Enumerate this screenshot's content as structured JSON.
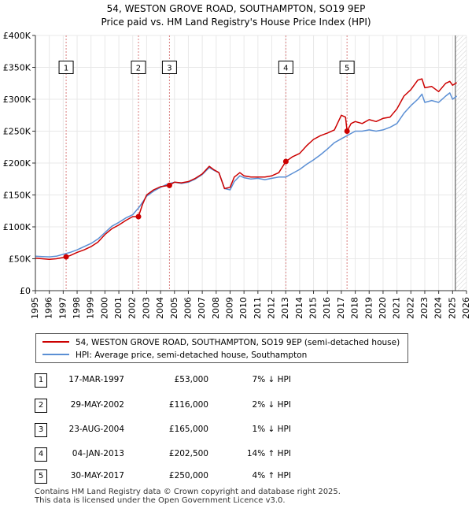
{
  "chart_data": {
    "type": "line",
    "title": "54, WESTON GROVE ROAD, SOUTHAMPTON, SO19 9EP",
    "subtitle": "Price paid vs. HM Land Registry's House Price Index (HPI)",
    "xlim": [
      1995,
      2026
    ],
    "ylim": [
      0,
      400000
    ],
    "x_ticks": [
      1995,
      1996,
      1997,
      1998,
      1999,
      2000,
      2001,
      2002,
      2003,
      2004,
      2005,
      2006,
      2007,
      2008,
      2009,
      2010,
      2011,
      2012,
      2013,
      2014,
      2015,
      2016,
      2017,
      2018,
      2019,
      2020,
      2021,
      2022,
      2023,
      2024,
      2025,
      2026
    ],
    "y_ticks": [
      0,
      50000,
      100000,
      150000,
      200000,
      250000,
      300000,
      350000,
      400000
    ],
    "y_tick_labels": [
      "£0",
      "£50K",
      "£100K",
      "£150K",
      "£200K",
      "£250K",
      "£300K",
      "£350K",
      "£400K"
    ],
    "future_from": 2025.2,
    "colors": {
      "property": "#cc0000",
      "hpi": "#5b8fd4",
      "grid": "#e8e8e8",
      "vline": "#d98080"
    },
    "series": [
      {
        "name": "54, WESTON GROVE ROAD, SOUTHAMPTON, SO19 9EP (semi-detached house)",
        "x": [
          1995.0,
          1995.5,
          1996.0,
          1996.5,
          1997.0,
          1997.21,
          1997.5,
          1998.0,
          1998.5,
          1999.0,
          1999.5,
          2000.0,
          2000.5,
          2001.0,
          2001.5,
          2002.0,
          2002.41,
          2002.7,
          2003.0,
          2003.5,
          2004.0,
          2004.64,
          2005.0,
          2005.5,
          2006.0,
          2006.5,
          2007.0,
          2007.5,
          2007.8,
          2008.2,
          2008.6,
          2009.0,
          2009.3,
          2009.7,
          2010.0,
          2010.5,
          2011.0,
          2011.5,
          2012.0,
          2012.5,
          2013.01,
          2013.5,
          2014.0,
          2014.5,
          2015.0,
          2015.5,
          2016.0,
          2016.5,
          2017.0,
          2017.3,
          2017.41,
          2017.7,
          2018.0,
          2018.5,
          2019.0,
          2019.5,
          2020.0,
          2020.5,
          2021.0,
          2021.5,
          2022.0,
          2022.5,
          2022.8,
          2023.0,
          2023.5,
          2024.0,
          2024.5,
          2024.8,
          2025.0,
          2025.3
        ],
        "values": [
          51000,
          50000,
          49000,
          50000,
          52000,
          53000,
          55000,
          60000,
          64000,
          69000,
          76000,
          88000,
          97000,
          103000,
          110000,
          116000,
          116000,
          135000,
          150000,
          158000,
          163000,
          165000,
          170000,
          169000,
          171000,
          176000,
          183000,
          195000,
          190000,
          185000,
          160000,
          162000,
          178000,
          185000,
          180000,
          178000,
          178000,
          178000,
          180000,
          185000,
          202500,
          210000,
          215000,
          227000,
          237000,
          243000,
          247000,
          252000,
          275000,
          272000,
          250000,
          262000,
          265000,
          262000,
          268000,
          265000,
          270000,
          272000,
          285000,
          305000,
          315000,
          330000,
          332000,
          318000,
          320000,
          312000,
          325000,
          328000,
          322000,
          326000
        ]
      },
      {
        "name": "HPI: Average price, semi-detached house, Southampton",
        "x": [
          1995.0,
          1995.5,
          1996.0,
          1996.5,
          1997.0,
          1997.5,
          1998.0,
          1998.5,
          1999.0,
          1999.5,
          2000.0,
          2000.5,
          2001.0,
          2001.5,
          2002.0,
          2002.5,
          2003.0,
          2003.5,
          2004.0,
          2004.5,
          2005.0,
          2005.5,
          2006.0,
          2006.5,
          2007.0,
          2007.5,
          2007.8,
          2008.2,
          2008.6,
          2009.0,
          2009.3,
          2009.7,
          2010.0,
          2010.5,
          2011.0,
          2011.5,
          2012.0,
          2012.5,
          2013.0,
          2013.5,
          2014.0,
          2014.5,
          2015.0,
          2015.5,
          2016.0,
          2016.5,
          2017.0,
          2017.5,
          2018.0,
          2018.5,
          2019.0,
          2019.5,
          2020.0,
          2020.5,
          2021.0,
          2021.5,
          2022.0,
          2022.5,
          2022.8,
          2023.0,
          2023.5,
          2024.0,
          2024.5,
          2024.8,
          2025.0,
          2025.3
        ],
        "values": [
          54000,
          53500,
          53000,
          54000,
          57000,
          60000,
          64000,
          69000,
          74000,
          81000,
          91000,
          101000,
          107000,
          114000,
          119000,
          132000,
          148000,
          156000,
          162000,
          167000,
          170000,
          168000,
          170000,
          175000,
          182000,
          193000,
          189000,
          185000,
          160000,
          158000,
          171000,
          180000,
          177000,
          175000,
          176000,
          174000,
          176000,
          178000,
          178000,
          184000,
          190000,
          198000,
          205000,
          213000,
          222000,
          232000,
          238000,
          244000,
          250000,
          250000,
          252000,
          250000,
          252000,
          256000,
          262000,
          278000,
          290000,
          300000,
          308000,
          295000,
          298000,
          295000,
          305000,
          310000,
          300000,
          305000
        ]
      }
    ],
    "transactions": [
      {
        "id": "1",
        "x": 1997.21,
        "value": 53000,
        "date": "17-MAR-1997",
        "price": "£53,000",
        "hpi": "7% ↓ HPI"
      },
      {
        "id": "2",
        "x": 2002.41,
        "value": 116000,
        "date": "29-MAY-2002",
        "price": "£116,000",
        "hpi": "2% ↓ HPI"
      },
      {
        "id": "3",
        "x": 2004.64,
        "value": 165000,
        "date": "23-AUG-2004",
        "price": "£165,000",
        "hpi": "1% ↓ HPI"
      },
      {
        "id": "4",
        "x": 2013.01,
        "value": 202500,
        "date": "04-JAN-2013",
        "price": "£202,500",
        "hpi": "14% ↑ HPI"
      },
      {
        "id": "5",
        "x": 2017.41,
        "value": 250000,
        "date": "30-MAY-2017",
        "price": "£250,000",
        "hpi": "4% ↑ HPI"
      }
    ],
    "marker_label_value": 350000
  },
  "legend": {
    "property_label": "54, WESTON GROVE ROAD, SOUTHAMPTON, SO19 9EP (semi-detached house)",
    "hpi_label": "HPI: Average price, semi-detached house, Southampton"
  },
  "footer": {
    "line1": "Contains HM Land Registry data © Crown copyright and database right 2025.",
    "line2": "This data is licensed under the Open Government Licence v3.0."
  }
}
